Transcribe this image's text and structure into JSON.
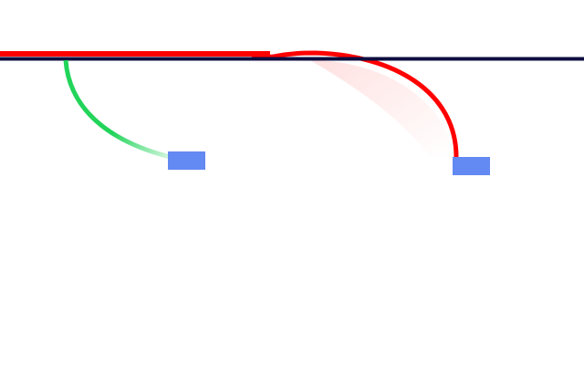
{
  "colors": {
    "background": "#ffffff",
    "red_path": "#ff0000",
    "navy_line": "#0d0d40",
    "green_path": "#22d45a",
    "blue_block": "#6389f2"
  }
}
